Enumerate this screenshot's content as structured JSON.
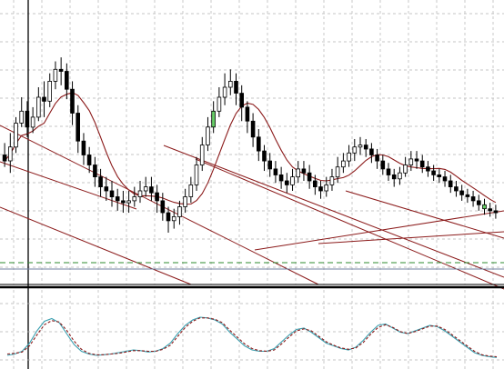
{
  "chart_data": [
    {
      "type": "candlestick",
      "panel": "price",
      "grid": true,
      "colors": {
        "bull": "#ffffff",
        "bear": "#000000",
        "highlight": "#66cc66",
        "ma": "#8b1a1a",
        "channel": "#8b1a1a",
        "level": "#2e8b2e",
        "baseline": "#7080a0"
      },
      "candles": [
        [
          181,
          178,
          187,
          175
        ],
        [
          178,
          185,
          192,
          172
        ],
        [
          185,
          197,
          200,
          182
        ],
        [
          197,
          203,
          210,
          195
        ],
        [
          203,
          195,
          208,
          190
        ],
        [
          195,
          200,
          205,
          192
        ],
        [
          200,
          210,
          215,
          198
        ],
        [
          210,
          208,
          218,
          200
        ],
        [
          208,
          218,
          222,
          205
        ],
        [
          218,
          224,
          228,
          214
        ],
        [
          224,
          223,
          230,
          216
        ],
        [
          223,
          214,
          227,
          209
        ],
        [
          214,
          202,
          218,
          196
        ],
        [
          202,
          188,
          206,
          182
        ],
        [
          188,
          181,
          192,
          176
        ],
        [
          181,
          176,
          185,
          172
        ],
        [
          176,
          170,
          180,
          165
        ],
        [
          170,
          165,
          174,
          160
        ],
        [
          165,
          163,
          170,
          158
        ],
        [
          163,
          160,
          168,
          155
        ],
        [
          160,
          158,
          164,
          153
        ],
        [
          158,
          157,
          163,
          152
        ],
        [
          157,
          158,
          163,
          152
        ],
        [
          158,
          160,
          165,
          155
        ],
        [
          160,
          163,
          168,
          157
        ],
        [
          163,
          165,
          170,
          160
        ],
        [
          165,
          162,
          170,
          158
        ],
        [
          162,
          158,
          166,
          152
        ],
        [
          158,
          152,
          162,
          148
        ],
        [
          152,
          148,
          155,
          142
        ],
        [
          148,
          150,
          154,
          144
        ],
        [
          150,
          155,
          158,
          146
        ],
        [
          155,
          160,
          164,
          152
        ],
        [
          160,
          166,
          170,
          157
        ],
        [
          166,
          176,
          180,
          163
        ],
        [
          176,
          186,
          190,
          173
        ],
        [
          186,
          195,
          200,
          183
        ],
        [
          195,
          203,
          208,
          192
        ],
        [
          203,
          210,
          215,
          200
        ],
        [
          210,
          215,
          222,
          206
        ],
        [
          215,
          218,
          224,
          211
        ],
        [
          218,
          212,
          222,
          206
        ],
        [
          212,
          205,
          216,
          198
        ],
        [
          205,
          198,
          208,
          192
        ],
        [
          198,
          190,
          202,
          185
        ],
        [
          190,
          183,
          194,
          178
        ],
        [
          183,
          178,
          186,
          173
        ],
        [
          178,
          174,
          182,
          170
        ],
        [
          174,
          171,
          178,
          167
        ],
        [
          171,
          168,
          175,
          164
        ],
        [
          168,
          166,
          172,
          162
        ],
        [
          166,
          170,
          174,
          163
        ],
        [
          170,
          174,
          178,
          167
        ],
        [
          174,
          172,
          178,
          168
        ],
        [
          172,
          168,
          176,
          164
        ],
        [
          168,
          165,
          171,
          161
        ],
        [
          165,
          163,
          168,
          159
        ],
        [
          163,
          166,
          170,
          160
        ],
        [
          166,
          170,
          174,
          163
        ],
        [
          170,
          175,
          180,
          167
        ],
        [
          175,
          178,
          182,
          172
        ],
        [
          178,
          182,
          186,
          175
        ],
        [
          182,
          185,
          189,
          178
        ],
        [
          185,
          186,
          190,
          181
        ],
        [
          186,
          184,
          189,
          180
        ],
        [
          184,
          181,
          187,
          177
        ],
        [
          181,
          178,
          184,
          174
        ],
        [
          178,
          174,
          181,
          171
        ],
        [
          174,
          171,
          177,
          168
        ],
        [
          171,
          169,
          174,
          165
        ],
        [
          169,
          172,
          175,
          166
        ],
        [
          172,
          176,
          180,
          170
        ],
        [
          176,
          179,
          183,
          173
        ],
        [
          179,
          178,
          183,
          174
        ],
        [
          178,
          175,
          181,
          172
        ],
        [
          175,
          173,
          178,
          170
        ],
        [
          173,
          171,
          176,
          168
        ],
        [
          171,
          170,
          174,
          167
        ],
        [
          170,
          168,
          173,
          165
        ],
        [
          168,
          165,
          171,
          162
        ],
        [
          165,
          163,
          168,
          160
        ],
        [
          163,
          161,
          166,
          158
        ],
        [
          161,
          160,
          164,
          157
        ],
        [
          160,
          158,
          163,
          155
        ],
        [
          158,
          156,
          161,
          153
        ],
        [
          156,
          154,
          159,
          151
        ],
        [
          154,
          153,
          157,
          150
        ],
        [
          153,
          152,
          156,
          149
        ]
      ],
      "highlighted": [
        37,
        85
      ]
    },
    {
      "type": "line",
      "panel": "oscillator",
      "grid": true,
      "series": [
        {
          "values": [
            12,
            14,
            18,
            30,
            48,
            62,
            66,
            60,
            44,
            28,
            18,
            14,
            12,
            13,
            14,
            16,
            18,
            20,
            19,
            17,
            18,
            22,
            30,
            44,
            56,
            64,
            68,
            67,
            64,
            58,
            46,
            36,
            26,
            20,
            18,
            18,
            22,
            32,
            42,
            50,
            52,
            46,
            38,
            30,
            26,
            22,
            20,
            24,
            34,
            46,
            56,
            58,
            52,
            46,
            44,
            48,
            52,
            56,
            54,
            48,
            40,
            32,
            24,
            16,
            12,
            10,
            9
          ],
          "color": "#3aa0b0",
          "style": "solid"
        },
        {
          "values": [
            14,
            15,
            17,
            26,
            42,
            57,
            63,
            61,
            49,
            33,
            21,
            15,
            13,
            13,
            14,
            15,
            17,
            19,
            19,
            18,
            18,
            21,
            27,
            40,
            53,
            62,
            67,
            67,
            65,
            60,
            49,
            39,
            29,
            22,
            19,
            18,
            20,
            29,
            39,
            48,
            51,
            48,
            40,
            32,
            27,
            23,
            21,
            23,
            31,
            43,
            53,
            57,
            53,
            47,
            44,
            47,
            51,
            55,
            55,
            50,
            42,
            34,
            26,
            18,
            13,
            11,
            10
          ],
          "color": "#8b1a1a",
          "style": "dashed"
        }
      ]
    }
  ]
}
